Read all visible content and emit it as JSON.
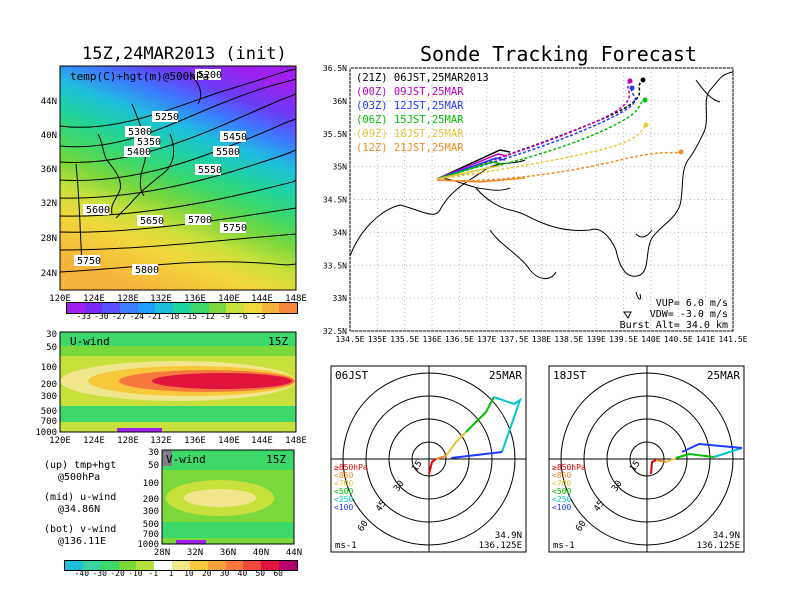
{
  "left_title": "15Z,24MAR2013 (init)",
  "right_title": "Sonde Tracking Forecast",
  "top_map": {
    "overlay_label": "temp(C)+hgt(m)@500hPa",
    "lat_ticks": [
      "44N",
      "40N",
      "36N",
      "32N",
      "28N",
      "24N"
    ],
    "lon_ticks": [
      "120E",
      "124E",
      "128E",
      "132E",
      "136E",
      "140E",
      "144E",
      "148E"
    ],
    "contours": [
      "5200",
      "5250",
      "5300",
      "5350",
      "5400",
      "5450",
      "5500",
      "5550",
      "5600",
      "5650",
      "5700",
      "5750",
      "5750",
      "5800"
    ],
    "colorbar_labels": [
      "-33",
      "-30",
      "-27",
      "-24",
      "-21",
      "-18",
      "-15",
      "-12",
      "-9",
      "-6",
      "-3"
    ],
    "colorbar_colors": [
      "#a020f0",
      "#7a2af6",
      "#5a50ff",
      "#3c7cff",
      "#1e9eff",
      "#1ebfdc",
      "#20d2a0",
      "#3cd86a",
      "#7ad73c",
      "#c8e03c",
      "#f0d83c",
      "#f7b43c",
      "#f5863c"
    ]
  },
  "u_wind": {
    "label": "U-wind",
    "time": "15Z",
    "y_ticks": [
      "30",
      "50",
      "100",
      "200",
      "300",
      "500",
      "700",
      "1000"
    ],
    "x_ticks": [
      "120E",
      "124E",
      "128E",
      "132E",
      "136E",
      "140E",
      "144E",
      "148E"
    ]
  },
  "v_wind": {
    "label": "V-wind",
    "time": "15Z",
    "y_ticks": [
      "30",
      "50",
      "100",
      "200",
      "300",
      "500",
      "700",
      "1000"
    ],
    "x_ticks": [
      "28N",
      "32N",
      "36N",
      "40N",
      "44N"
    ]
  },
  "legend_notes": [
    {
      "line1": "(up) tmp+hgt",
      "line2": "@500hPa"
    },
    {
      "line1": "(mid) u-wind",
      "line2": "@34.86N"
    },
    {
      "line1": "(bot) v-wind",
      "line2": "@136.11E"
    }
  ],
  "wind_colorbar": {
    "labels": [
      "-40",
      "-30",
      "-20",
      "-10",
      "-1",
      "1",
      "10",
      "20",
      "30",
      "40",
      "50",
      "60"
    ],
    "colors": [
      "#1ebfdc",
      "#3cd2a0",
      "#3cd86a",
      "#7ad73c",
      "#b4e03c",
      "#ffffff",
      "#f0e68c",
      "#f7c83c",
      "#f7a03c",
      "#f5783c",
      "#f04a3c",
      "#e0143c",
      "#b4006e"
    ]
  },
  "track_map": {
    "lat_ticks": [
      "36.5N",
      "36N",
      "35.5N",
      "35N",
      "34.5N",
      "34N",
      "33.5N",
      "33N",
      "32.5N"
    ],
    "lon_ticks": [
      "134.5E",
      "135E",
      "135.5E",
      "136E",
      "136.5E",
      "137E",
      "137.5E",
      "138E",
      "138.5E",
      "139E",
      "139.5E",
      "140E",
      "140.5E",
      "141E",
      "141.5E"
    ],
    "launches": [
      {
        "label": "(21Z) 06JST,25MAR2013",
        "color": "#000000"
      },
      {
        "label": "(00Z) 09JST,25MAR",
        "color": "#c000c0"
      },
      {
        "label": "(03Z) 12JST,25MAR",
        "color": "#1e3cff"
      },
      {
        "label": "(06Z) 15JST,25MAR",
        "color": "#00c000"
      },
      {
        "label": "(09Z) 18JST,25MAR",
        "color": "#e6c83c"
      },
      {
        "label": "(12Z) 21JST,25MAR",
        "color": "#f08c28"
      }
    ],
    "params": [
      "VUP= 6.0 m/s",
      "VDW= -3.0 m/s",
      "Burst Alt= 34.0 km"
    ]
  },
  "hodographs": [
    {
      "time": "06JST",
      "date": "25MAR",
      "lat": "34.9N",
      "lon": "136.125E",
      "unit": "ms-1"
    },
    {
      "time": "18JST",
      "date": "25MAR",
      "lat": "34.9N",
      "lon": "136.125E",
      "unit": "ms-1"
    }
  ],
  "hodo_rings": [
    "15",
    "30",
    "45",
    "60"
  ],
  "hodo_legend": [
    {
      "label": "≥850hPa",
      "color": "#e00000"
    },
    {
      "label": "<850",
      "color": "#f08c28"
    },
    {
      "label": "<700",
      "color": "#e6c83c"
    },
    {
      "label": "<500",
      "color": "#00c000"
    },
    {
      "label": "<250",
      "color": "#00c8c8"
    },
    {
      "label": "<100",
      "color": "#1e3cff"
    }
  ]
}
